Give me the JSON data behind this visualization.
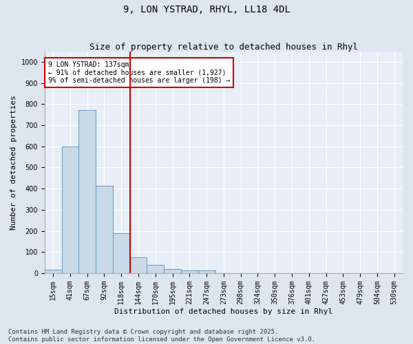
{
  "title1": "9, LON YSTRAD, RHYL, LL18 4DL",
  "title2": "Size of property relative to detached houses in Rhyl",
  "xlabel": "Distribution of detached houses by size in Rhyl",
  "ylabel": "Number of detached properties",
  "categories": [
    "15sqm",
    "41sqm",
    "67sqm",
    "92sqm",
    "118sqm",
    "144sqm",
    "170sqm",
    "195sqm",
    "221sqm",
    "247sqm",
    "273sqm",
    "298sqm",
    "324sqm",
    "350sqm",
    "376sqm",
    "401sqm",
    "427sqm",
    "453sqm",
    "479sqm",
    "504sqm",
    "530sqm"
  ],
  "values": [
    15,
    600,
    770,
    415,
    190,
    75,
    38,
    18,
    12,
    12,
    0,
    0,
    0,
    0,
    0,
    0,
    0,
    0,
    0,
    0,
    0
  ],
  "bar_color": "#c9d9e8",
  "bar_edge_color": "#6699bb",
  "vline_color": "#cc0000",
  "annotation_text": "9 LON YSTRAD: 137sqm\n← 91% of detached houses are smaller (1,927)\n9% of semi-detached houses are larger (198) →",
  "annotation_box_color": "#ffffff",
  "annotation_box_edge": "#cc0000",
  "ylim": [
    0,
    1050
  ],
  "yticks": [
    0,
    100,
    200,
    300,
    400,
    500,
    600,
    700,
    800,
    900,
    1000
  ],
  "bg_color": "#dde5ef",
  "plot_bg_color": "#e8eef5",
  "footer_text": "Contains HM Land Registry data © Crown copyright and database right 2025.\nContains public sector information licensed under the Open Government Licence v3.0.",
  "title_fontsize": 10,
  "subtitle_fontsize": 9,
  "axis_label_fontsize": 8,
  "tick_fontsize": 7,
  "footer_fontsize": 6.5,
  "annot_fontsize": 7
}
